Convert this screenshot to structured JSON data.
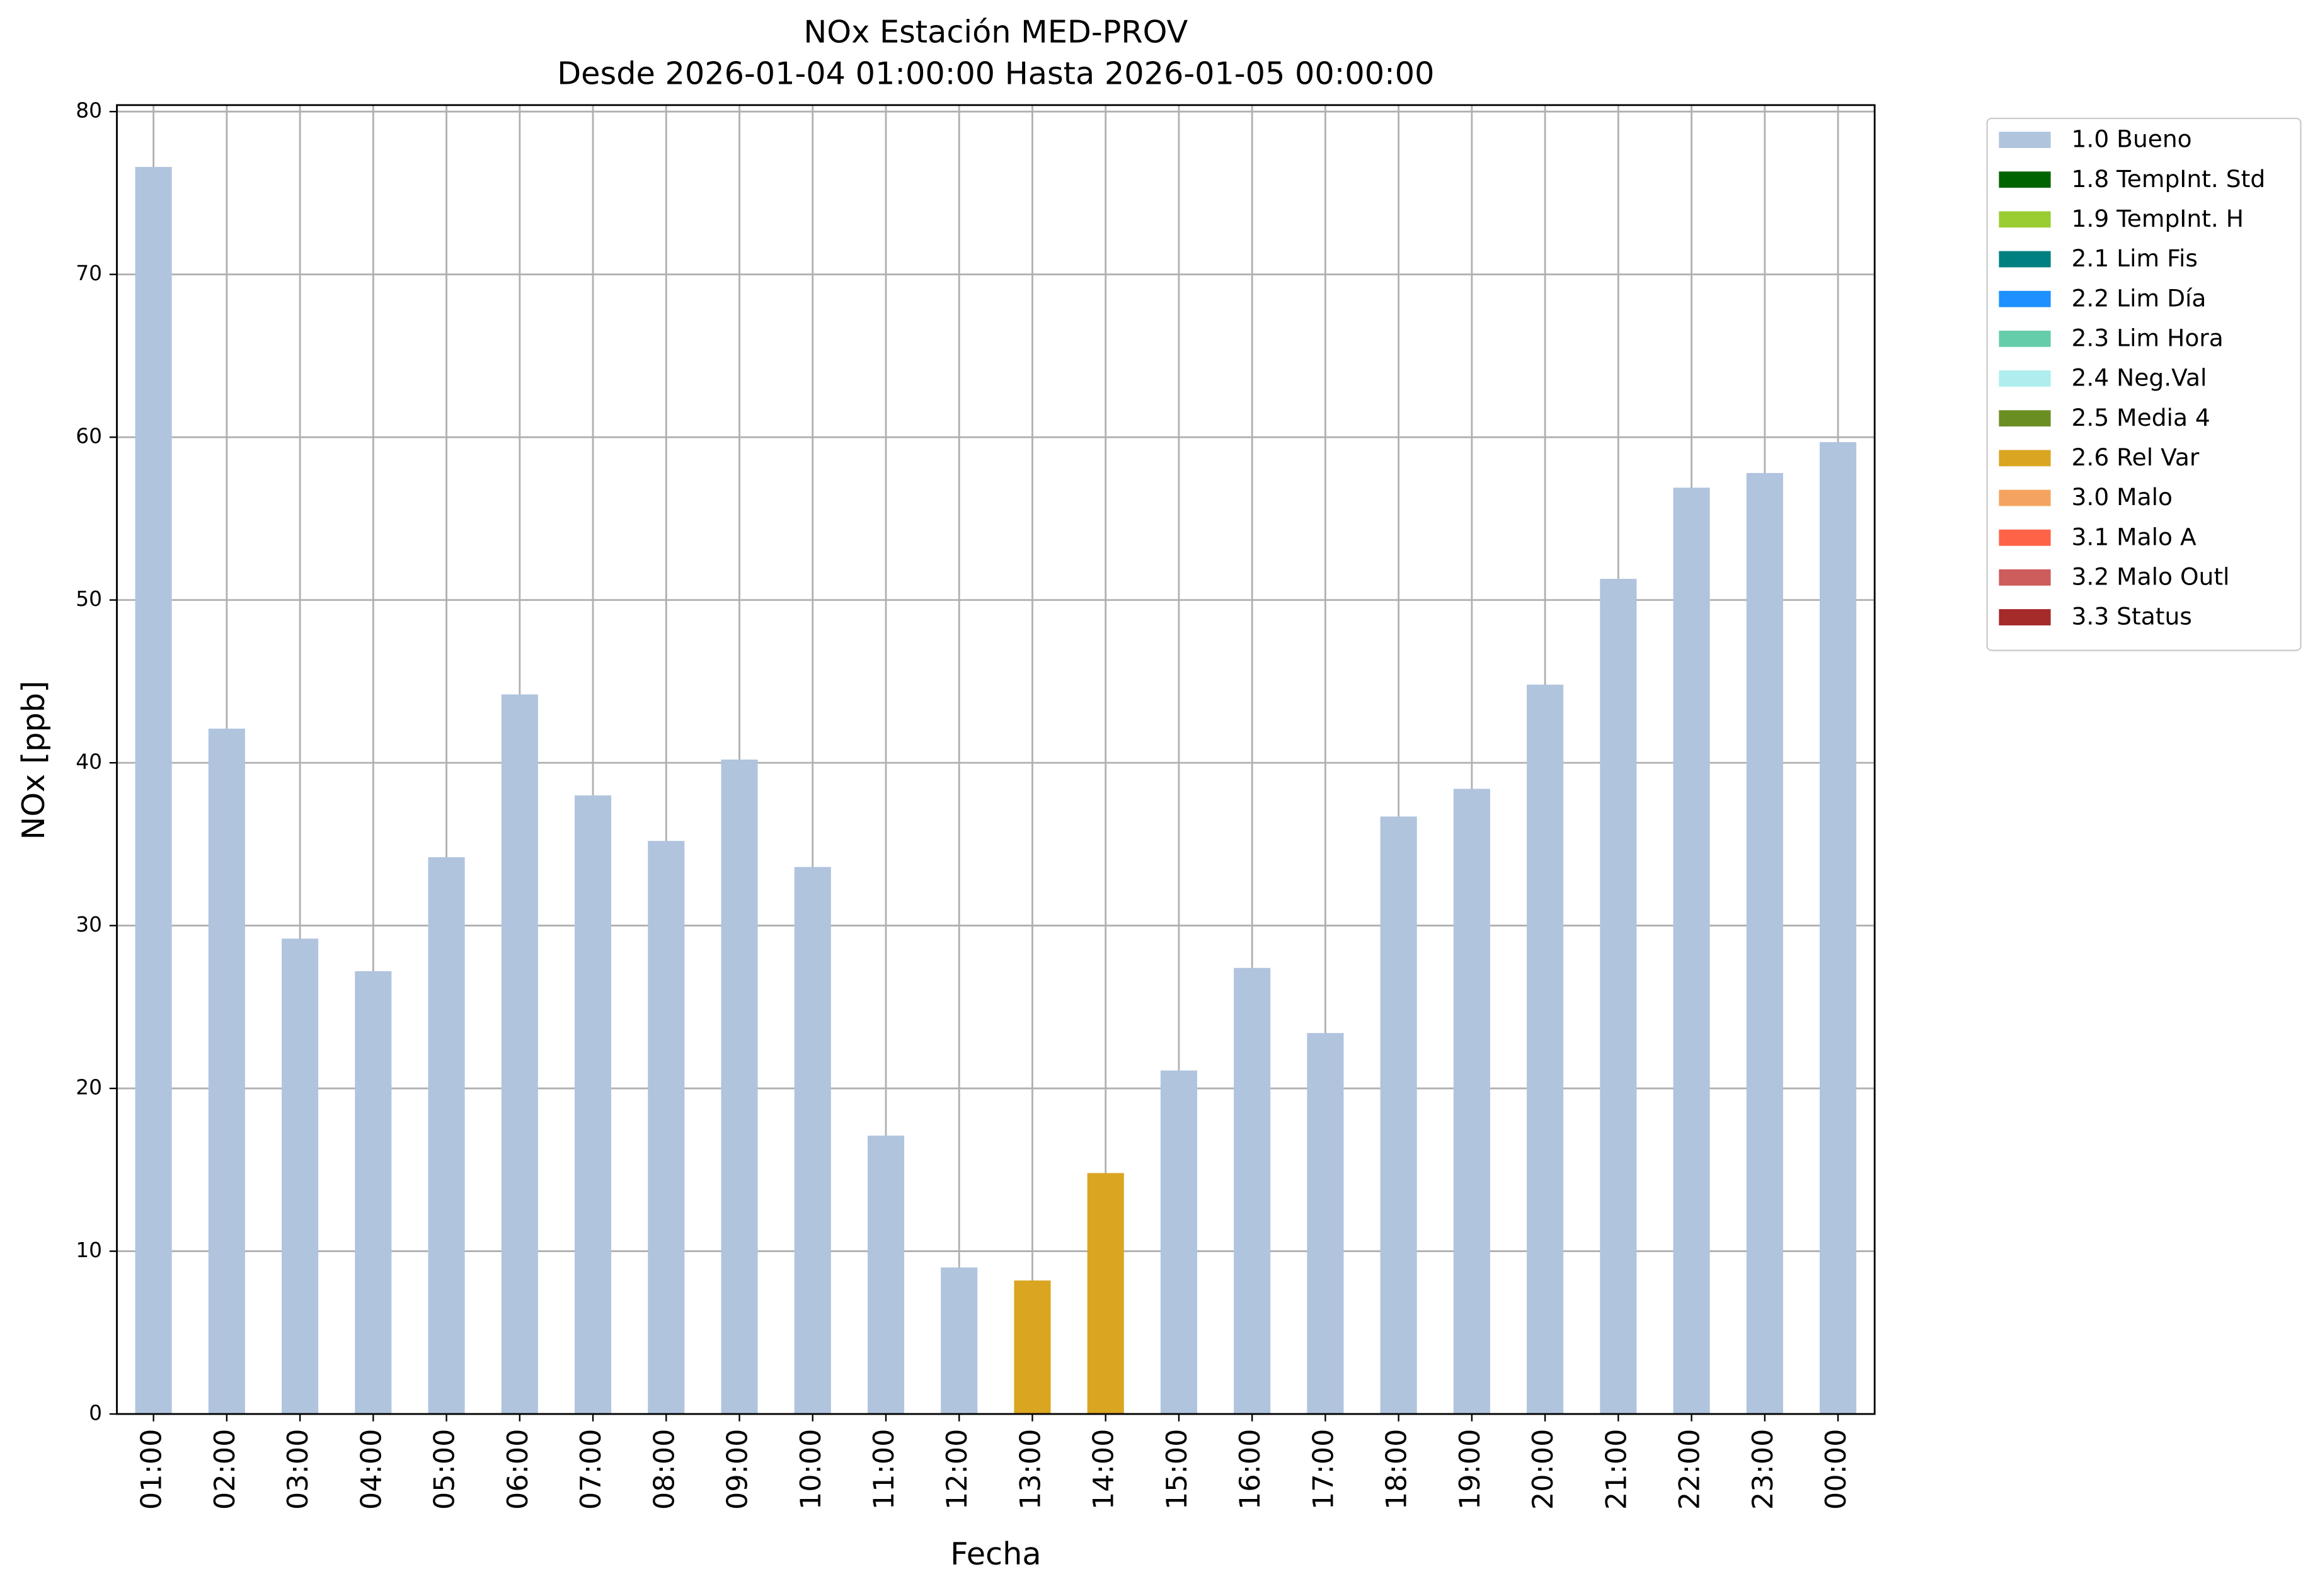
{
  "chart_data": {
    "type": "bar",
    "stacked": true,
    "title": "NOx Estación MED-PROV",
    "subtitle": "Desde 2026-01-04 01:00:00 Hasta 2026-01-05 00:00:00",
    "x_label": "Fecha",
    "y_label": "NOx [ppb]",
    "categories": [
      "01:00",
      "02:00",
      "03:00",
      "04:00",
      "05:00",
      "06:00",
      "07:00",
      "08:00",
      "09:00",
      "10:00",
      "11:00",
      "12:00",
      "13:00",
      "14:00",
      "15:00",
      "16:00",
      "17:00",
      "18:00",
      "19:00",
      "20:00",
      "21:00",
      "22:00",
      "23:00",
      "00:00"
    ],
    "series": [
      {
        "name": "1.0 Bueno",
        "color": "#b0c4de",
        "values": [
          76.6,
          42.1,
          29.2,
          27.2,
          34.2,
          44.2,
          38.0,
          35.2,
          40.2,
          33.6,
          17.1,
          9.0,
          null,
          null,
          21.1,
          27.4,
          23.4,
          36.7,
          38.4,
          44.8,
          51.3,
          56.9,
          57.8,
          59.7
        ]
      },
      {
        "name": "1.8 TempInt. Std",
        "color": "#006400",
        "values": [
          null,
          null,
          null,
          null,
          null,
          null,
          null,
          null,
          null,
          null,
          null,
          null,
          null,
          null,
          null,
          null,
          null,
          null,
          null,
          null,
          null,
          null,
          null,
          null
        ]
      },
      {
        "name": "1.9 TempInt. H",
        "color": "#9acd32",
        "values": [
          null,
          null,
          null,
          null,
          null,
          null,
          null,
          null,
          null,
          null,
          null,
          null,
          null,
          null,
          null,
          null,
          null,
          null,
          null,
          null,
          null,
          null,
          null,
          null
        ]
      },
      {
        "name": "2.1 Lim Fis",
        "color": "#008080",
        "values": [
          null,
          null,
          null,
          null,
          null,
          null,
          null,
          null,
          null,
          null,
          null,
          null,
          null,
          null,
          null,
          null,
          null,
          null,
          null,
          null,
          null,
          null,
          null,
          null
        ]
      },
      {
        "name": "2.2 Lim Día",
        "color": "#1e90ff",
        "values": [
          null,
          null,
          null,
          null,
          null,
          null,
          null,
          null,
          null,
          null,
          null,
          null,
          null,
          null,
          null,
          null,
          null,
          null,
          null,
          null,
          null,
          null,
          null,
          null
        ]
      },
      {
        "name": "2.3 Lim Hora",
        "color": "#66cdaa",
        "values": [
          null,
          null,
          null,
          null,
          null,
          null,
          null,
          null,
          null,
          null,
          null,
          null,
          null,
          null,
          null,
          null,
          null,
          null,
          null,
          null,
          null,
          null,
          null,
          null
        ]
      },
      {
        "name": "2.4 Neg.Val",
        "color": "#afeeee",
        "values": [
          null,
          null,
          null,
          null,
          null,
          null,
          null,
          null,
          null,
          null,
          null,
          null,
          null,
          null,
          null,
          null,
          null,
          null,
          null,
          null,
          null,
          null,
          null,
          null
        ]
      },
      {
        "name": "2.5 Media 4",
        "color": "#6b8e23",
        "values": [
          null,
          null,
          null,
          null,
          null,
          null,
          null,
          null,
          null,
          null,
          null,
          null,
          null,
          null,
          null,
          null,
          null,
          null,
          null,
          null,
          null,
          null,
          null,
          null
        ]
      },
      {
        "name": "2.6 Rel Var",
        "color": "#daa520",
        "values": [
          null,
          null,
          null,
          null,
          null,
          null,
          null,
          null,
          null,
          null,
          null,
          null,
          8.2,
          14.8,
          null,
          null,
          null,
          null,
          null,
          null,
          null,
          null,
          null,
          null
        ]
      },
      {
        "name": "3.0 Malo",
        "color": "#f4a460",
        "values": [
          null,
          null,
          null,
          null,
          null,
          null,
          null,
          null,
          null,
          null,
          null,
          null,
          null,
          null,
          null,
          null,
          null,
          null,
          null,
          null,
          null,
          null,
          null,
          null
        ]
      },
      {
        "name": "3.1 Malo A",
        "color": "#ff6347",
        "values": [
          null,
          null,
          null,
          null,
          null,
          null,
          null,
          null,
          null,
          null,
          null,
          null,
          null,
          null,
          null,
          null,
          null,
          null,
          null,
          null,
          null,
          null,
          null,
          null
        ]
      },
      {
        "name": "3.2 Malo Outl",
        "color": "#cd5c5c",
        "values": [
          null,
          null,
          null,
          null,
          null,
          null,
          null,
          null,
          null,
          null,
          null,
          null,
          null,
          null,
          null,
          null,
          null,
          null,
          null,
          null,
          null,
          null,
          null,
          null
        ]
      },
      {
        "name": "3.3 Status",
        "color": "#a52a2a",
        "values": [
          null,
          null,
          null,
          null,
          null,
          null,
          null,
          null,
          null,
          null,
          null,
          null,
          null,
          null,
          null,
          null,
          null,
          null,
          null,
          null,
          null,
          null,
          null,
          null
        ]
      }
    ],
    "ylim": [
      0,
      80.4
    ],
    "yticks": [
      0,
      10,
      20,
      30,
      40,
      50,
      60,
      70,
      80
    ],
    "grid": true,
    "legend": "outside-right"
  }
}
